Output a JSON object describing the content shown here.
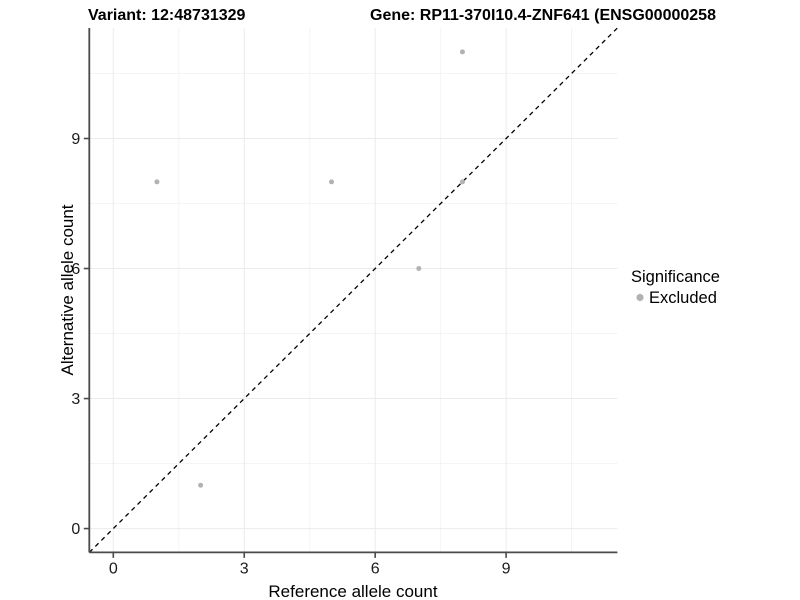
{
  "chart_data": {
    "type": "scatter",
    "title_left": "Variant: 12:48731329",
    "title_right": "Gene: RP11-370I10.4-ZNF641 (ENSG00000258",
    "xlabel": "Reference allele count",
    "ylabel": "Alternative allele count",
    "xlim": [
      -0.55,
      11.55
    ],
    "ylim": [
      -0.55,
      11.55
    ],
    "x_ticks": [
      0,
      3,
      6,
      9
    ],
    "y_ticks": [
      0,
      3,
      6,
      9
    ],
    "x_minor_gridlines": [
      1.5,
      4.5,
      7.5,
      10.5
    ],
    "y_minor_gridlines": [
      1.5,
      4.5,
      7.5,
      10.5
    ],
    "grid": "on",
    "legend_position": "right",
    "identity_line": {
      "style": "dashed",
      "equation": "y = x",
      "from": [
        -0.55,
        -0.55
      ],
      "to": [
        11.55,
        11.55
      ],
      "color": "#000000"
    },
    "legend": {
      "title": "Significance",
      "items": [
        {
          "label": "Excluded",
          "color": "#b2b2b2"
        }
      ]
    },
    "series": [
      {
        "name": "Excluded",
        "color": "#b2b2b2",
        "points": [
          {
            "x": 1,
            "y": 8
          },
          {
            "x": 2,
            "y": 1
          },
          {
            "x": 5,
            "y": 8
          },
          {
            "x": 7,
            "y": 6
          },
          {
            "x": 8,
            "y": 8
          },
          {
            "x": 8,
            "y": 11
          }
        ]
      }
    ],
    "colors": {
      "excluded_point": "#b2b2b2",
      "axis_line": "#4a4a4a",
      "tick_text": "#1a1a1a",
      "grid_major": "#ebebeb",
      "grid_minor": "#f4f4f4",
      "background": "#ffffff"
    }
  }
}
